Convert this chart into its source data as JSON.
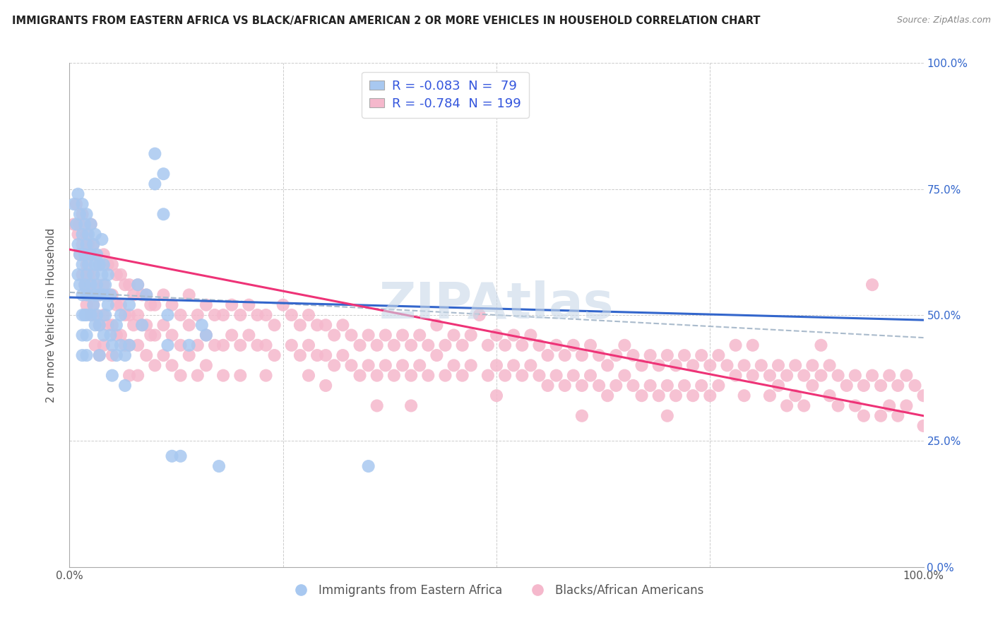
{
  "title": "IMMIGRANTS FROM EASTERN AFRICA VS BLACK/AFRICAN AMERICAN 2 OR MORE VEHICLES IN HOUSEHOLD CORRELATION CHART",
  "source": "Source: ZipAtlas.com",
  "ylabel": "2 or more Vehicles in Household",
  "xlim": [
    0.0,
    1.0
  ],
  "ylim": [
    0.0,
    1.0
  ],
  "xticks": [
    0.0,
    0.25,
    0.5,
    0.75,
    1.0
  ],
  "yticks": [
    0.0,
    0.25,
    0.5,
    0.75,
    1.0
  ],
  "xticklabels": [
    "0.0%",
    "",
    "",
    "",
    "100.0%"
  ],
  "yticklabels_left": [
    "",
    "",
    "",
    "",
    ""
  ],
  "yticklabels_right": [
    "0.0%",
    "25.0%",
    "50.0%",
    "75.0%",
    "100.0%"
  ],
  "blue_R": -0.083,
  "blue_N": 79,
  "pink_R": -0.784,
  "pink_N": 199,
  "blue_color": "#a8c8f0",
  "pink_color": "#f5b8cc",
  "blue_line_color": "#3366cc",
  "pink_line_color": "#ee3377",
  "blue_legend_label": "Immigrants from Eastern Africa",
  "pink_legend_label": "Blacks/African Americans",
  "watermark": "ZIPAtlas",
  "blue_line_x0": 0.0,
  "blue_line_y0": 0.535,
  "blue_line_x1": 1.0,
  "blue_line_y1": 0.49,
  "pink_line_x0": 0.0,
  "pink_line_y0": 0.63,
  "pink_line_x1": 1.0,
  "pink_line_y1": 0.3,
  "dash_line_x0": 0.0,
  "dash_line_y0": 0.545,
  "dash_line_x1": 1.0,
  "dash_line_y1": 0.455,
  "blue_scatter": [
    [
      0.005,
      0.72
    ],
    [
      0.008,
      0.68
    ],
    [
      0.01,
      0.74
    ],
    [
      0.012,
      0.7
    ],
    [
      0.01,
      0.64
    ],
    [
      0.012,
      0.62
    ],
    [
      0.01,
      0.58
    ],
    [
      0.012,
      0.56
    ],
    [
      0.015,
      0.72
    ],
    [
      0.015,
      0.66
    ],
    [
      0.015,
      0.6
    ],
    [
      0.015,
      0.54
    ],
    [
      0.015,
      0.5
    ],
    [
      0.015,
      0.46
    ],
    [
      0.015,
      0.42
    ],
    [
      0.018,
      0.68
    ],
    [
      0.018,
      0.62
    ],
    [
      0.018,
      0.56
    ],
    [
      0.018,
      0.5
    ],
    [
      0.02,
      0.7
    ],
    [
      0.02,
      0.64
    ],
    [
      0.02,
      0.58
    ],
    [
      0.02,
      0.54
    ],
    [
      0.02,
      0.5
    ],
    [
      0.02,
      0.46
    ],
    [
      0.02,
      0.42
    ],
    [
      0.022,
      0.66
    ],
    [
      0.022,
      0.6
    ],
    [
      0.022,
      0.54
    ],
    [
      0.025,
      0.68
    ],
    [
      0.025,
      0.62
    ],
    [
      0.025,
      0.56
    ],
    [
      0.025,
      0.5
    ],
    [
      0.028,
      0.64
    ],
    [
      0.028,
      0.58
    ],
    [
      0.028,
      0.52
    ],
    [
      0.03,
      0.66
    ],
    [
      0.03,
      0.6
    ],
    [
      0.03,
      0.54
    ],
    [
      0.03,
      0.48
    ],
    [
      0.032,
      0.62
    ],
    [
      0.032,
      0.56
    ],
    [
      0.032,
      0.5
    ],
    [
      0.035,
      0.6
    ],
    [
      0.035,
      0.54
    ],
    [
      0.035,
      0.48
    ],
    [
      0.035,
      0.42
    ],
    [
      0.038,
      0.65
    ],
    [
      0.038,
      0.58
    ],
    [
      0.04,
      0.6
    ],
    [
      0.04,
      0.54
    ],
    [
      0.04,
      0.46
    ],
    [
      0.042,
      0.56
    ],
    [
      0.042,
      0.5
    ],
    [
      0.045,
      0.58
    ],
    [
      0.045,
      0.52
    ],
    [
      0.048,
      0.54
    ],
    [
      0.048,
      0.46
    ],
    [
      0.05,
      0.38
    ],
    [
      0.05,
      0.44
    ],
    [
      0.055,
      0.48
    ],
    [
      0.055,
      0.42
    ],
    [
      0.06,
      0.5
    ],
    [
      0.06,
      0.44
    ],
    [
      0.065,
      0.42
    ],
    [
      0.065,
      0.36
    ],
    [
      0.07,
      0.52
    ],
    [
      0.07,
      0.44
    ],
    [
      0.08,
      0.56
    ],
    [
      0.085,
      0.48
    ],
    [
      0.09,
      0.54
    ],
    [
      0.1,
      0.82
    ],
    [
      0.1,
      0.76
    ],
    [
      0.11,
      0.78
    ],
    [
      0.11,
      0.7
    ],
    [
      0.115,
      0.5
    ],
    [
      0.115,
      0.44
    ],
    [
      0.12,
      0.22
    ],
    [
      0.13,
      0.22
    ],
    [
      0.14,
      0.44
    ],
    [
      0.155,
      0.48
    ],
    [
      0.16,
      0.46
    ],
    [
      0.175,
      0.2
    ],
    [
      0.35,
      0.2
    ]
  ],
  "pink_scatter": [
    [
      0.005,
      0.68
    ],
    [
      0.008,
      0.72
    ],
    [
      0.01,
      0.66
    ],
    [
      0.012,
      0.62
    ],
    [
      0.012,
      0.68
    ],
    [
      0.015,
      0.64
    ],
    [
      0.015,
      0.7
    ],
    [
      0.015,
      0.58
    ],
    [
      0.018,
      0.62
    ],
    [
      0.018,
      0.56
    ],
    [
      0.02,
      0.66
    ],
    [
      0.02,
      0.6
    ],
    [
      0.02,
      0.56
    ],
    [
      0.02,
      0.52
    ],
    [
      0.022,
      0.64
    ],
    [
      0.022,
      0.58
    ],
    [
      0.022,
      0.54
    ],
    [
      0.025,
      0.62
    ],
    [
      0.025,
      0.68
    ],
    [
      0.025,
      0.56
    ],
    [
      0.025,
      0.5
    ],
    [
      0.028,
      0.64
    ],
    [
      0.028,
      0.58
    ],
    [
      0.028,
      0.52
    ],
    [
      0.03,
      0.62
    ],
    [
      0.03,
      0.56
    ],
    [
      0.03,
      0.5
    ],
    [
      0.03,
      0.44
    ],
    [
      0.035,
      0.6
    ],
    [
      0.035,
      0.54
    ],
    [
      0.035,
      0.48
    ],
    [
      0.035,
      0.42
    ],
    [
      0.04,
      0.62
    ],
    [
      0.04,
      0.56
    ],
    [
      0.04,
      0.5
    ],
    [
      0.04,
      0.44
    ],
    [
      0.045,
      0.6
    ],
    [
      0.045,
      0.54
    ],
    [
      0.045,
      0.48
    ],
    [
      0.05,
      0.6
    ],
    [
      0.05,
      0.54
    ],
    [
      0.05,
      0.48
    ],
    [
      0.05,
      0.42
    ],
    [
      0.055,
      0.58
    ],
    [
      0.055,
      0.52
    ],
    [
      0.055,
      0.46
    ],
    [
      0.06,
      0.58
    ],
    [
      0.06,
      0.52
    ],
    [
      0.06,
      0.46
    ],
    [
      0.065,
      0.56
    ],
    [
      0.065,
      0.5
    ],
    [
      0.065,
      0.44
    ],
    [
      0.07,
      0.56
    ],
    [
      0.07,
      0.5
    ],
    [
      0.07,
      0.44
    ],
    [
      0.07,
      0.38
    ],
    [
      0.075,
      0.54
    ],
    [
      0.075,
      0.48
    ],
    [
      0.08,
      0.56
    ],
    [
      0.08,
      0.5
    ],
    [
      0.08,
      0.44
    ],
    [
      0.08,
      0.38
    ],
    [
      0.085,
      0.54
    ],
    [
      0.085,
      0.48
    ],
    [
      0.09,
      0.54
    ],
    [
      0.09,
      0.48
    ],
    [
      0.09,
      0.42
    ],
    [
      0.095,
      0.52
    ],
    [
      0.095,
      0.46
    ],
    [
      0.1,
      0.52
    ],
    [
      0.1,
      0.46
    ],
    [
      0.1,
      0.4
    ],
    [
      0.11,
      0.54
    ],
    [
      0.11,
      0.48
    ],
    [
      0.11,
      0.42
    ],
    [
      0.12,
      0.52
    ],
    [
      0.12,
      0.46
    ],
    [
      0.12,
      0.4
    ],
    [
      0.13,
      0.5
    ],
    [
      0.13,
      0.44
    ],
    [
      0.13,
      0.38
    ],
    [
      0.14,
      0.54
    ],
    [
      0.14,
      0.48
    ],
    [
      0.14,
      0.42
    ],
    [
      0.15,
      0.5
    ],
    [
      0.15,
      0.44
    ],
    [
      0.15,
      0.38
    ],
    [
      0.16,
      0.52
    ],
    [
      0.16,
      0.46
    ],
    [
      0.16,
      0.4
    ],
    [
      0.17,
      0.5
    ],
    [
      0.17,
      0.44
    ],
    [
      0.18,
      0.5
    ],
    [
      0.18,
      0.44
    ],
    [
      0.18,
      0.38
    ],
    [
      0.19,
      0.52
    ],
    [
      0.19,
      0.46
    ],
    [
      0.2,
      0.5
    ],
    [
      0.2,
      0.44
    ],
    [
      0.2,
      0.38
    ],
    [
      0.21,
      0.52
    ],
    [
      0.21,
      0.46
    ],
    [
      0.22,
      0.5
    ],
    [
      0.22,
      0.44
    ],
    [
      0.23,
      0.5
    ],
    [
      0.23,
      0.44
    ],
    [
      0.23,
      0.38
    ],
    [
      0.24,
      0.48
    ],
    [
      0.24,
      0.42
    ],
    [
      0.25,
      0.52
    ],
    [
      0.26,
      0.5
    ],
    [
      0.26,
      0.44
    ],
    [
      0.27,
      0.48
    ],
    [
      0.27,
      0.42
    ],
    [
      0.28,
      0.5
    ],
    [
      0.28,
      0.44
    ],
    [
      0.28,
      0.38
    ],
    [
      0.29,
      0.48
    ],
    [
      0.29,
      0.42
    ],
    [
      0.3,
      0.48
    ],
    [
      0.3,
      0.42
    ],
    [
      0.3,
      0.36
    ],
    [
      0.31,
      0.46
    ],
    [
      0.31,
      0.4
    ],
    [
      0.32,
      0.48
    ],
    [
      0.32,
      0.42
    ],
    [
      0.33,
      0.46
    ],
    [
      0.33,
      0.4
    ],
    [
      0.34,
      0.44
    ],
    [
      0.34,
      0.38
    ],
    [
      0.35,
      0.46
    ],
    [
      0.35,
      0.4
    ],
    [
      0.36,
      0.44
    ],
    [
      0.36,
      0.38
    ],
    [
      0.36,
      0.32
    ],
    [
      0.37,
      0.46
    ],
    [
      0.37,
      0.4
    ],
    [
      0.38,
      0.44
    ],
    [
      0.38,
      0.38
    ],
    [
      0.39,
      0.46
    ],
    [
      0.39,
      0.4
    ],
    [
      0.4,
      0.44
    ],
    [
      0.4,
      0.38
    ],
    [
      0.4,
      0.32
    ],
    [
      0.41,
      0.46
    ],
    [
      0.41,
      0.4
    ],
    [
      0.42,
      0.44
    ],
    [
      0.42,
      0.38
    ],
    [
      0.43,
      0.48
    ],
    [
      0.43,
      0.42
    ],
    [
      0.44,
      0.44
    ],
    [
      0.44,
      0.38
    ],
    [
      0.45,
      0.46
    ],
    [
      0.45,
      0.4
    ],
    [
      0.46,
      0.44
    ],
    [
      0.46,
      0.38
    ],
    [
      0.47,
      0.46
    ],
    [
      0.47,
      0.4
    ],
    [
      0.48,
      0.5
    ],
    [
      0.49,
      0.44
    ],
    [
      0.49,
      0.38
    ],
    [
      0.5,
      0.46
    ],
    [
      0.5,
      0.4
    ],
    [
      0.5,
      0.34
    ],
    [
      0.51,
      0.44
    ],
    [
      0.51,
      0.38
    ],
    [
      0.52,
      0.46
    ],
    [
      0.52,
      0.4
    ],
    [
      0.53,
      0.44
    ],
    [
      0.53,
      0.38
    ],
    [
      0.54,
      0.46
    ],
    [
      0.54,
      0.4
    ],
    [
      0.55,
      0.44
    ],
    [
      0.55,
      0.38
    ],
    [
      0.56,
      0.42
    ],
    [
      0.56,
      0.36
    ],
    [
      0.57,
      0.44
    ],
    [
      0.57,
      0.38
    ],
    [
      0.58,
      0.42
    ],
    [
      0.58,
      0.36
    ],
    [
      0.59,
      0.44
    ],
    [
      0.59,
      0.38
    ],
    [
      0.6,
      0.42
    ],
    [
      0.6,
      0.36
    ],
    [
      0.6,
      0.3
    ],
    [
      0.61,
      0.44
    ],
    [
      0.61,
      0.38
    ],
    [
      0.62,
      0.42
    ],
    [
      0.62,
      0.36
    ],
    [
      0.63,
      0.4
    ],
    [
      0.63,
      0.34
    ],
    [
      0.64,
      0.42
    ],
    [
      0.64,
      0.36
    ],
    [
      0.65,
      0.44
    ],
    [
      0.65,
      0.38
    ],
    [
      0.66,
      0.42
    ],
    [
      0.66,
      0.36
    ],
    [
      0.67,
      0.4
    ],
    [
      0.67,
      0.34
    ],
    [
      0.68,
      0.42
    ],
    [
      0.68,
      0.36
    ],
    [
      0.69,
      0.4
    ],
    [
      0.69,
      0.34
    ],
    [
      0.7,
      0.42
    ],
    [
      0.7,
      0.36
    ],
    [
      0.7,
      0.3
    ],
    [
      0.71,
      0.4
    ],
    [
      0.71,
      0.34
    ],
    [
      0.72,
      0.42
    ],
    [
      0.72,
      0.36
    ],
    [
      0.73,
      0.4
    ],
    [
      0.73,
      0.34
    ],
    [
      0.74,
      0.42
    ],
    [
      0.74,
      0.36
    ],
    [
      0.75,
      0.4
    ],
    [
      0.75,
      0.34
    ],
    [
      0.76,
      0.42
    ],
    [
      0.76,
      0.36
    ],
    [
      0.77,
      0.4
    ],
    [
      0.78,
      0.38
    ],
    [
      0.78,
      0.44
    ],
    [
      0.79,
      0.4
    ],
    [
      0.79,
      0.34
    ],
    [
      0.8,
      0.38
    ],
    [
      0.8,
      0.44
    ],
    [
      0.81,
      0.4
    ],
    [
      0.82,
      0.38
    ],
    [
      0.82,
      0.34
    ],
    [
      0.83,
      0.4
    ],
    [
      0.83,
      0.36
    ],
    [
      0.84,
      0.38
    ],
    [
      0.84,
      0.32
    ],
    [
      0.85,
      0.4
    ],
    [
      0.85,
      0.34
    ],
    [
      0.86,
      0.38
    ],
    [
      0.86,
      0.32
    ],
    [
      0.87,
      0.4
    ],
    [
      0.87,
      0.36
    ],
    [
      0.88,
      0.38
    ],
    [
      0.88,
      0.44
    ],
    [
      0.89,
      0.4
    ],
    [
      0.89,
      0.34
    ],
    [
      0.9,
      0.38
    ],
    [
      0.9,
      0.32
    ],
    [
      0.91,
      0.36
    ],
    [
      0.92,
      0.38
    ],
    [
      0.92,
      0.32
    ],
    [
      0.93,
      0.36
    ],
    [
      0.93,
      0.3
    ],
    [
      0.94,
      0.38
    ],
    [
      0.94,
      0.56
    ],
    [
      0.95,
      0.36
    ],
    [
      0.95,
      0.3
    ],
    [
      0.96,
      0.38
    ],
    [
      0.96,
      0.32
    ],
    [
      0.97,
      0.36
    ],
    [
      0.97,
      0.3
    ],
    [
      0.98,
      0.38
    ],
    [
      0.98,
      0.32
    ],
    [
      0.99,
      0.36
    ],
    [
      1.0,
      0.34
    ],
    [
      1.0,
      0.28
    ]
  ]
}
